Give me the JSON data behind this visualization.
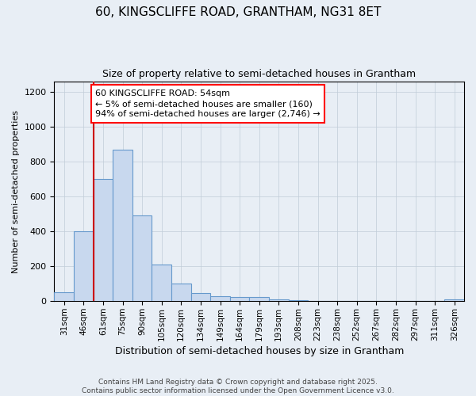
{
  "title1": "60, KINGSCLIFFE ROAD, GRANTHAM, NG31 8ET",
  "title2": "Size of property relative to semi-detached houses in Grantham",
  "xlabel": "Distribution of semi-detached houses by size in Grantham",
  "ylabel": "Number of semi-detached properties",
  "categories": [
    "31sqm",
    "46sqm",
    "61sqm",
    "75sqm",
    "90sqm",
    "105sqm",
    "120sqm",
    "134sqm",
    "149sqm",
    "164sqm",
    "179sqm",
    "193sqm",
    "208sqm",
    "223sqm",
    "238sqm",
    "252sqm",
    "267sqm",
    "282sqm",
    "297sqm",
    "311sqm",
    "326sqm"
  ],
  "values": [
    50,
    400,
    700,
    870,
    490,
    210,
    100,
    45,
    30,
    25,
    25,
    10,
    5,
    3,
    3,
    2,
    2,
    1,
    1,
    1,
    10
  ],
  "bar_color": "#c8d8ee",
  "bar_edge_color": "#6699cc",
  "annotation_text": "60 KINGSCLIFFE ROAD: 54sqm\n← 5% of semi-detached houses are smaller (160)\n94% of semi-detached houses are larger (2,746) →",
  "vline_color": "#cc0000",
  "ylim": [
    0,
    1260
  ],
  "yticks": [
    0,
    200,
    400,
    600,
    800,
    1000,
    1200
  ],
  "footer1": "Contains HM Land Registry data © Crown copyright and database right 2025.",
  "footer2": "Contains public sector information licensed under the Open Government Licence v3.0.",
  "bg_color": "#e8eef5",
  "plot_bg_color": "#e8eef5",
  "grid_color": "#c0ccd8"
}
